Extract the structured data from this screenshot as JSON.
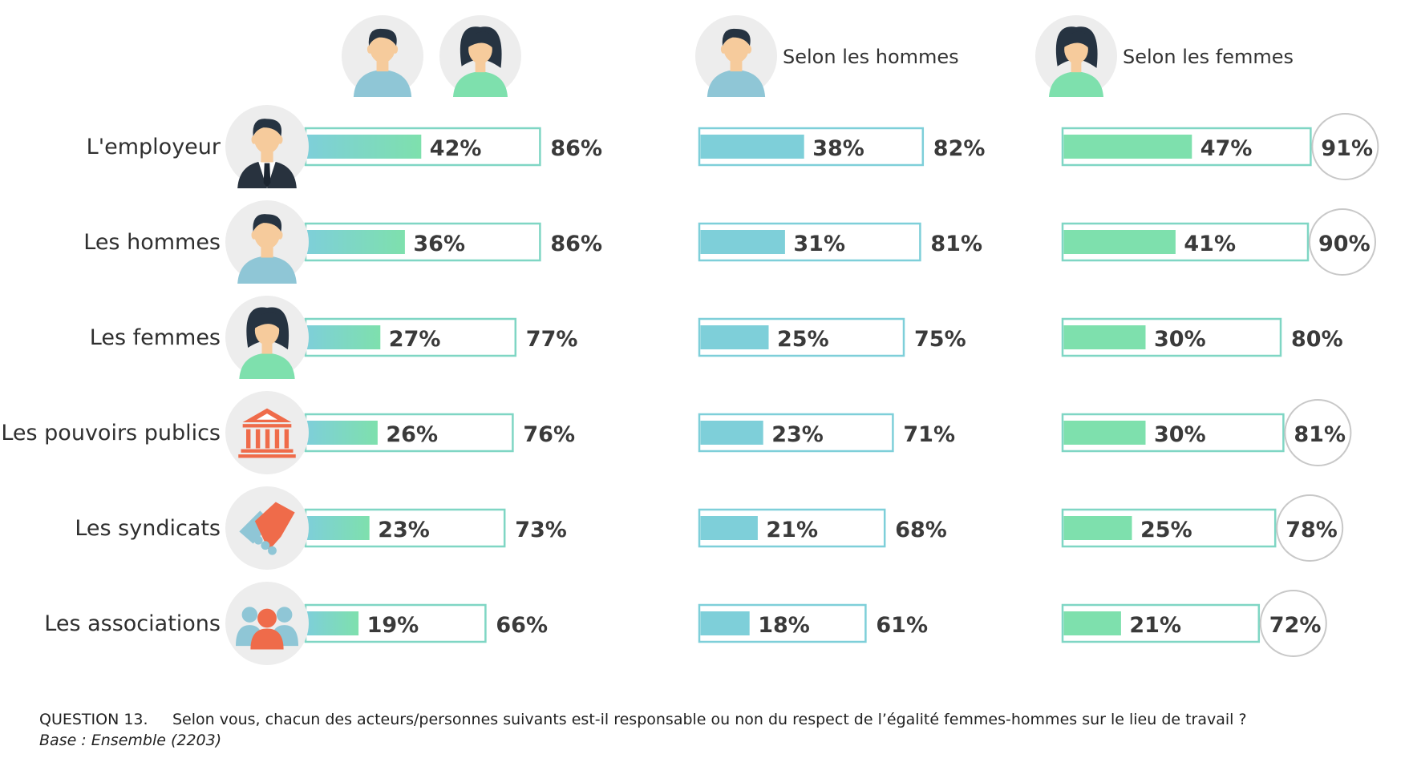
{
  "chart_data": {
    "type": "bar",
    "categories": [
      "L'employeur",
      "Les hommes",
      "Les femmes",
      "Les pouvoirs publics",
      "Les syndicats",
      "Les associations"
    ],
    "category_icons": [
      "businessman-icon",
      "man-icon",
      "woman-icon",
      "government-building-icon",
      "handshake-icon",
      "group-icon"
    ],
    "series": [
      {
        "name": "",
        "icon": "man-and-woman-icon",
        "values_inner": [
          42,
          36,
          27,
          26,
          23,
          19
        ],
        "values_total": [
          86,
          86,
          77,
          76,
          73,
          66
        ],
        "circled": [
          false,
          false,
          false,
          false,
          false,
          false
        ]
      },
      {
        "name": "Selon les hommes",
        "icon": "man-icon",
        "values_inner": [
          38,
          31,
          25,
          23,
          21,
          18
        ],
        "values_total": [
          82,
          81,
          75,
          71,
          68,
          61
        ],
        "circled": [
          false,
          false,
          false,
          false,
          false,
          false
        ]
      },
      {
        "name": "Selon les femmes",
        "icon": "woman-icon",
        "values_inner": [
          47,
          41,
          30,
          30,
          25,
          21
        ],
        "values_total": [
          91,
          90,
          80,
          81,
          78,
          72
        ],
        "circled": [
          true,
          true,
          false,
          true,
          true,
          true
        ]
      }
    ],
    "unit": "%",
    "xlim": [
      0,
      100
    ],
    "colors": {
      "men": "#7ecfd9",
      "women": "#7ee0ad",
      "outline": "#7fd6c4",
      "circle": "#c8c8c8",
      "icon_bg": "#ededed"
    }
  },
  "footer": {
    "question_id": "QUESTION 13.",
    "question_text": "Selon vous, chacun des acteurs/personnes suivants est-il responsable ou non du respect de l’égalité femmes-hommes sur le lieu de travail ?",
    "base": "Base : Ensemble (2203)"
  }
}
